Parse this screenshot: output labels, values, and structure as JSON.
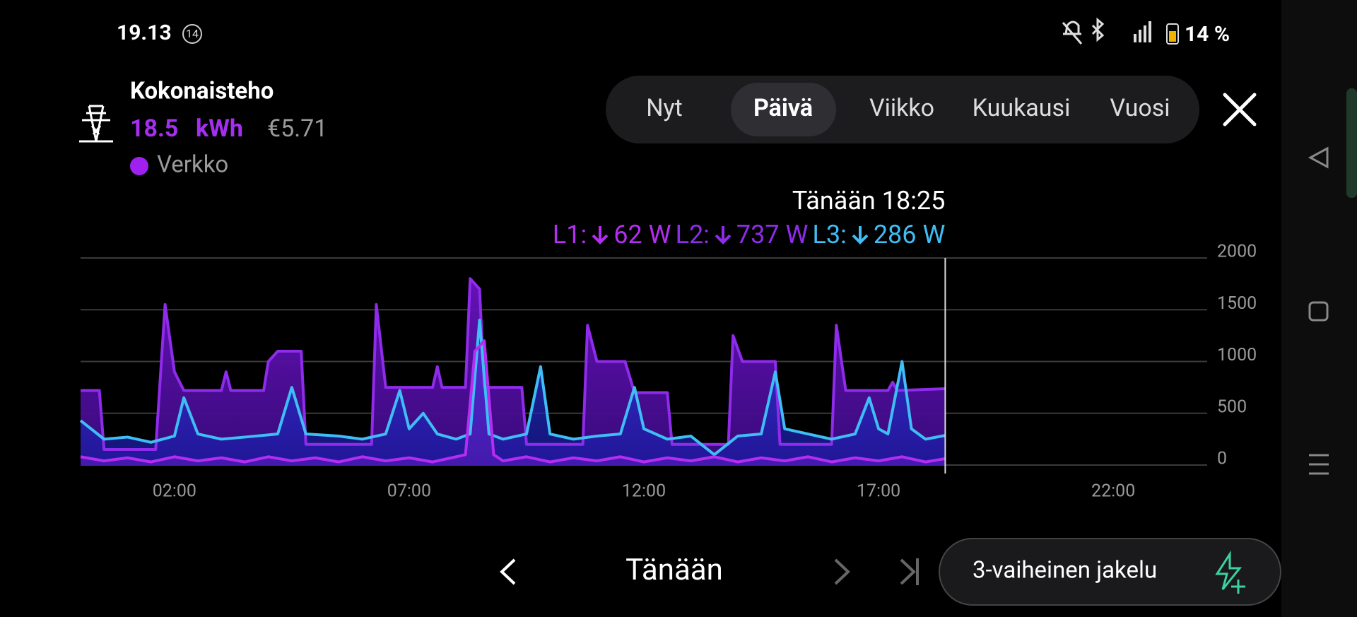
{
  "status_bar": {
    "time": "19.13",
    "badge": "14",
    "battery": "14 %"
  },
  "header": {
    "title": "Kokonaisteho",
    "energy": 18.5,
    "unit": "kWh",
    "cost": "€5.71",
    "source": "Verkko"
  },
  "tabs": [
    "Nyt",
    "Päivä",
    "Viikko",
    "Kuukausi",
    "Vuosi"
  ],
  "chart_data": {
    "type": "area",
    "xlim": [
      0,
      24
    ],
    "xticks": [
      {
        "value": 2,
        "label": "02:00"
      },
      {
        "value": 7,
        "label": "07:00"
      },
      {
        "value": 12,
        "label": "12:00"
      },
      {
        "value": 17,
        "label": "17:00"
      },
      {
        "value": 22,
        "label": "22:00"
      }
    ],
    "ylim": [
      0,
      2000
    ],
    "yticks": [
      0,
      500,
      1000,
      1500,
      2000
    ],
    "grid": true,
    "cursor": {
      "x": {
        "value": 18.42,
        "label": "Tänään 18:25"
      },
      "value_labels": [
        "62 W",
        "737 W",
        "286 W"
      ]
    },
    "series": [
      {
        "name": "L1:",
        "color": "#b42df2",
        "x": [
          0,
          0.5,
          1,
          1.5,
          2,
          2.5,
          3,
          3.5,
          4,
          4.5,
          5,
          5.5,
          6,
          6.5,
          7,
          7.5,
          8,
          8.2,
          8.4,
          8.6,
          8.8,
          9,
          9.5,
          10,
          10.5,
          11,
          11.5,
          12,
          12.5,
          13,
          13.5,
          14,
          14.5,
          15,
          15.5,
          16,
          16.5,
          17,
          17.5,
          18,
          18.42
        ],
        "values": [
          80,
          40,
          70,
          30,
          80,
          40,
          70,
          30,
          80,
          40,
          70,
          30,
          80,
          40,
          70,
          30,
          80,
          100,
          1100,
          1200,
          100,
          40,
          80,
          30,
          70,
          40,
          80,
          30,
          70,
          40,
          80,
          30,
          70,
          40,
          80,
          30,
          70,
          40,
          80,
          30,
          62
        ]
      },
      {
        "name": "L2:",
        "color": "#8f2bea",
        "x": [
          0,
          0.4,
          0.5,
          1.6,
          1.8,
          2.0,
          2.2,
          3.0,
          3.1,
          3.2,
          3.9,
          4.0,
          4.2,
          4.7,
          4.8,
          6.2,
          6.3,
          6.5,
          7.5,
          7.6,
          7.7,
          8.2,
          8.3,
          8.5,
          8.6,
          9.4,
          9.5,
          10.7,
          10.8,
          11.0,
          11.6,
          11.7,
          11.8,
          12.5,
          12.6,
          13.8,
          13.9,
          14.1,
          14.8,
          14.9,
          16.0,
          16.1,
          16.3,
          17.2,
          17.3,
          17.4,
          18.42
        ],
        "values": [
          720,
          720,
          150,
          150,
          1550,
          900,
          720,
          720,
          900,
          720,
          720,
          1000,
          1100,
          1100,
          200,
          200,
          1550,
          750,
          750,
          950,
          750,
          750,
          1800,
          1700,
          750,
          750,
          200,
          200,
          1350,
          1000,
          1000,
          850,
          700,
          700,
          200,
          200,
          1250,
          1000,
          1000,
          200,
          200,
          1350,
          720,
          720,
          800,
          720,
          737
        ]
      },
      {
        "name": "L3:",
        "color": "#3fbdf5",
        "x": [
          0,
          0.5,
          1.0,
          1.5,
          2.0,
          2.2,
          2.5,
          3.0,
          3.5,
          4.2,
          4.5,
          4.8,
          5.5,
          6.0,
          6.5,
          6.8,
          7.0,
          7.3,
          7.6,
          8.0,
          8.3,
          8.5,
          8.7,
          9.0,
          9.5,
          9.8,
          10.0,
          10.5,
          11.0,
          11.5,
          11.8,
          12.0,
          12.5,
          13.0,
          13.5,
          14.0,
          14.5,
          14.8,
          15.0,
          15.5,
          16.0,
          16.5,
          16.8,
          17.0,
          17.2,
          17.5,
          17.7,
          18.0,
          18.42
        ],
        "values": [
          430,
          250,
          270,
          220,
          280,
          650,
          300,
          250,
          270,
          300,
          750,
          300,
          280,
          250,
          300,
          720,
          350,
          500,
          300,
          250,
          300,
          1400,
          300,
          250,
          300,
          950,
          300,
          250,
          280,
          300,
          750,
          350,
          250,
          280,
          100,
          280,
          300,
          900,
          350,
          300,
          250,
          300,
          650,
          350,
          300,
          1000,
          350,
          250,
          286
        ]
      }
    ]
  },
  "footer": {
    "period": "Tänään",
    "button": "3-vaiheinen jakelu"
  }
}
